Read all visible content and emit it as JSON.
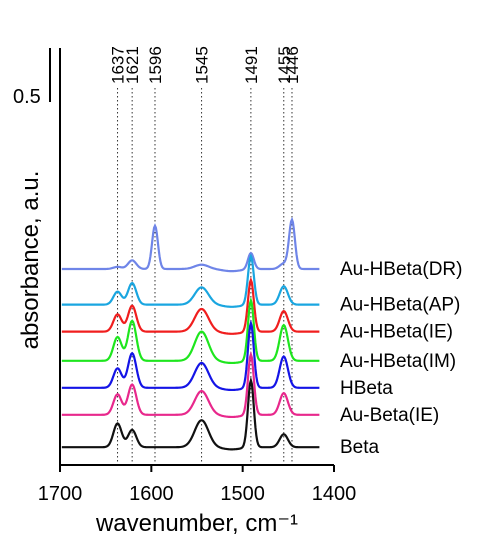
{
  "chart_data": {
    "type": "line",
    "xlabel": "wavenumber, cm⁻¹",
    "ylabel": "absorbance, a.u.",
    "xlim": [
      1700,
      1400
    ],
    "x_reversed": true,
    "x_ticks": [
      1700,
      1600,
      1500,
      1400
    ],
    "x_tick_labels": [
      "1700",
      "1600",
      "1500",
      "1400"
    ],
    "scale_bar_label": "0.5",
    "scale_bar_value": 0.5,
    "peak_labels": [
      {
        "wavenumber": 1637,
        "label": "1637"
      },
      {
        "wavenumber": 1621,
        "label": "1621"
      },
      {
        "wavenumber": 1596,
        "label": "1596"
      },
      {
        "wavenumber": 1545,
        "label": "1545"
      },
      {
        "wavenumber": 1491,
        "label": "1491"
      },
      {
        "wavenumber": 1455,
        "label": "1455"
      },
      {
        "wavenumber": 1446,
        "label": "1446"
      }
    ],
    "series": [
      {
        "name": "Au-HBeta(DR)",
        "color": "#6f85e8",
        "baseline": 1.75,
        "peaks": [
          [
            1637,
            0.02
          ],
          [
            1621,
            0.08
          ],
          [
            1596,
            0.4
          ],
          [
            1545,
            0.04
          ],
          [
            1491,
            0.15
          ],
          [
            1455,
            0.05
          ],
          [
            1446,
            0.45
          ]
        ]
      },
      {
        "name": "Au-HBeta(AP)",
        "color": "#1aa6e0",
        "baseline": 1.42,
        "peaks": [
          [
            1637,
            0.12
          ],
          [
            1621,
            0.2
          ],
          [
            1545,
            0.16
          ],
          [
            1491,
            0.45
          ],
          [
            1455,
            0.17
          ]
        ]
      },
      {
        "name": "Au-HBeta(IE)",
        "color": "#f01e1e",
        "baseline": 1.17,
        "peaks": [
          [
            1637,
            0.16
          ],
          [
            1621,
            0.24
          ],
          [
            1545,
            0.21
          ],
          [
            1491,
            0.48
          ],
          [
            1455,
            0.19
          ]
        ]
      },
      {
        "name": "Au-HBeta(IM)",
        "color": "#1ee61e",
        "baseline": 0.9,
        "peaks": [
          [
            1637,
            0.22
          ],
          [
            1621,
            0.37
          ],
          [
            1545,
            0.27
          ],
          [
            1491,
            0.56
          ],
          [
            1455,
            0.33
          ]
        ]
      },
      {
        "name": "HBeta",
        "color": "#1414e6",
        "baseline": 0.65,
        "peaks": [
          [
            1637,
            0.18
          ],
          [
            1621,
            0.32
          ],
          [
            1545,
            0.23
          ],
          [
            1491,
            0.6
          ],
          [
            1455,
            0.29
          ]
        ]
      },
      {
        "name": "Au-Beta(IE)",
        "color": "#e8288c",
        "baseline": 0.4,
        "peaks": [
          [
            1637,
            0.19
          ],
          [
            1621,
            0.28
          ],
          [
            1545,
            0.22
          ],
          [
            1491,
            0.56
          ],
          [
            1455,
            0.2
          ]
        ]
      },
      {
        "name": "Beta",
        "color": "#111111",
        "baseline": 0.1,
        "peaks": [
          [
            1637,
            0.22
          ],
          [
            1621,
            0.16
          ],
          [
            1545,
            0.25
          ],
          [
            1491,
            0.62
          ],
          [
            1455,
            0.12
          ]
        ]
      }
    ]
  }
}
